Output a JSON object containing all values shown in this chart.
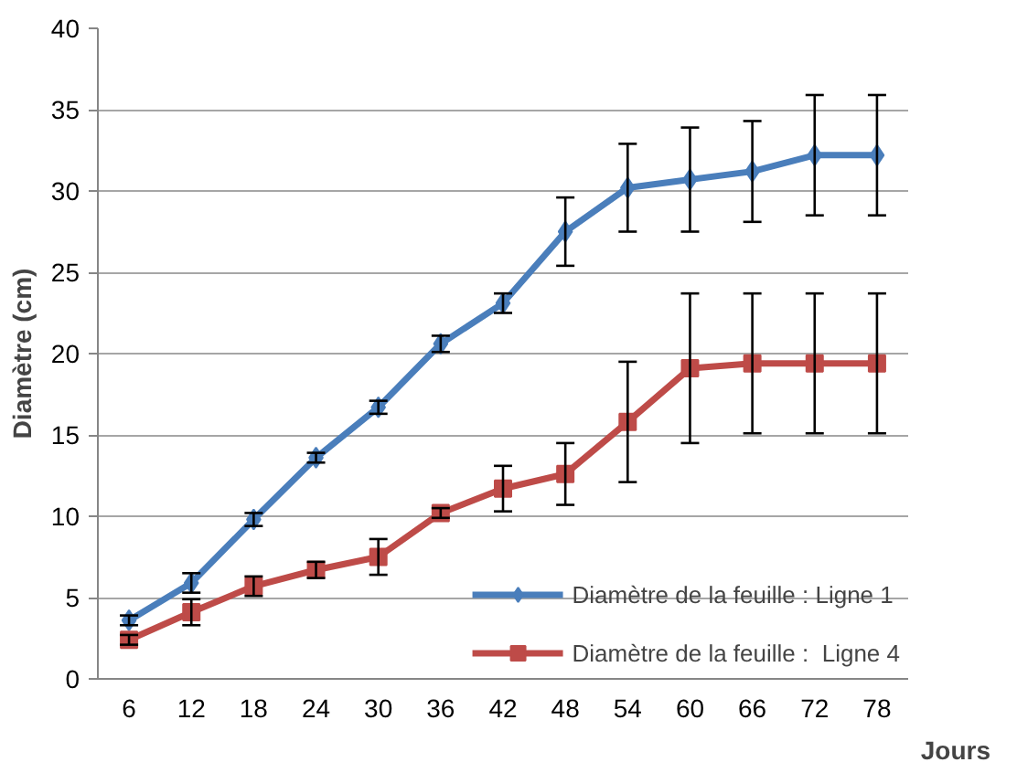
{
  "chart_data": {
    "type": "line",
    "xlabel": "Jours",
    "ylabel": "Diamètre (cm)",
    "categories": [
      "6",
      "12",
      "18",
      "24",
      "30",
      "36",
      "42",
      "48",
      "54",
      "60",
      "66",
      "72",
      "78"
    ],
    "series": [
      {
        "name": "Diamètre de la feuille : Ligne 1",
        "color": "#4a7ebb",
        "marker": "diamond",
        "values": [
          3.6,
          5.9,
          9.8,
          13.6,
          16.7,
          20.6,
          23.1,
          27.5,
          30.2,
          30.7,
          31.2,
          32.2,
          32.2
        ],
        "errors": [
          0.3,
          0.6,
          0.4,
          0.3,
          0.4,
          0.5,
          0.6,
          2.1,
          2.7,
          3.2,
          3.1,
          3.7,
          3.7
        ]
      },
      {
        "name": "Diamètre de la feuille :  Ligne 4",
        "color": "#be4b48",
        "marker": "square",
        "values": [
          2.4,
          4.1,
          5.7,
          6.7,
          7.5,
          10.2,
          11.7,
          12.6,
          15.8,
          19.1,
          19.4,
          19.4,
          19.4
        ],
        "errors": [
          0.3,
          0.8,
          0.6,
          0.5,
          1.1,
          0.3,
          1.4,
          1.9,
          3.7,
          4.6,
          4.3,
          4.3,
          4.3
        ]
      }
    ],
    "ylim": [
      0,
      40
    ],
    "yticks": [
      0,
      5,
      10,
      15,
      20,
      25,
      30,
      35,
      40
    ],
    "grid": "y",
    "legend": "bottom right",
    "line_style": "solid"
  }
}
